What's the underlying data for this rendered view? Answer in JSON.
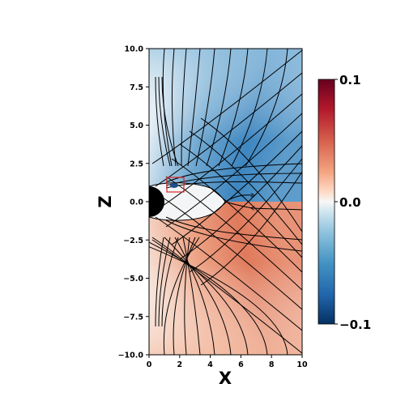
{
  "chart_data": {
    "type": "heatmap",
    "title": "",
    "xlabel": "X",
    "ylabel": "Z",
    "xlim": [
      0,
      10
    ],
    "ylim": [
      -10,
      10
    ],
    "x_ticks": [
      "0",
      "2",
      "4",
      "6",
      "8",
      "10"
    ],
    "y_ticks": [
      "10.0",
      "7.5",
      "5.0",
      "2.5",
      "0.0",
      "−2.5",
      "−5.0",
      "−7.5",
      "−10.0"
    ],
    "colormap": "RdBu_r",
    "colorbar": {
      "range": [
        -0.1,
        0.1
      ],
      "ticks": [
        "0.1",
        "0.0",
        "−0.1"
      ],
      "placement": "right"
    },
    "colors": {
      "negative": "#2f6ea9",
      "mid_negative": "#9ec8e0",
      "zero": "#f5f5f5",
      "mid_positive": "#f0a98a",
      "positive": "#e07356"
    },
    "features": {
      "planet_body": "black half-disk at origin",
      "magnetosphere_cavity": "near-zero (white) region",
      "highlight_box": {
        "x": [
          1.2,
          2.3
        ],
        "z": [
          0.6,
          1.5
        ],
        "color": "#d62728"
      }
    }
  }
}
